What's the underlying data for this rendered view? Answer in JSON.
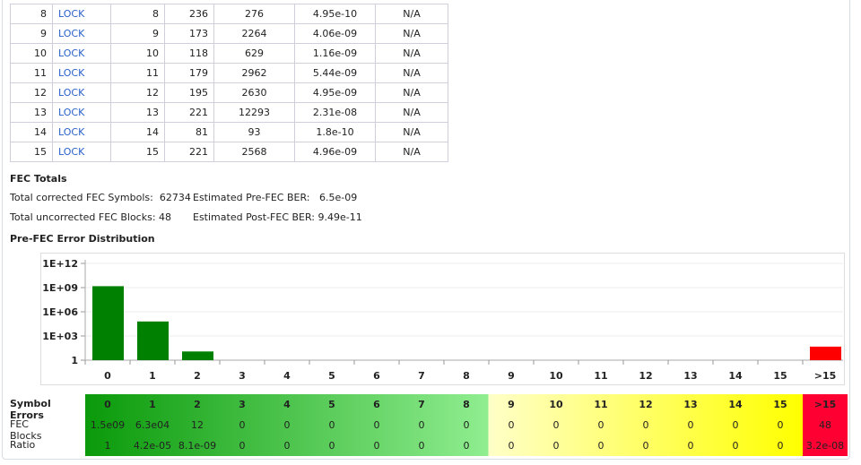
{
  "channels": {
    "rows": [
      [
        "8",
        "LOCK",
        "8",
        "236",
        "276",
        "4.95e-10",
        "N/A"
      ],
      [
        "9",
        "LOCK",
        "9",
        "173",
        "2264",
        "4.06e-09",
        "N/A"
      ],
      [
        "10",
        "LOCK",
        "10",
        "118",
        "629",
        "1.16e-09",
        "N/A"
      ],
      [
        "11",
        "LOCK",
        "11",
        "179",
        "2962",
        "5.44e-09",
        "N/A"
      ],
      [
        "12",
        "LOCK",
        "12",
        "195",
        "2630",
        "4.95e-09",
        "N/A"
      ],
      [
        "13",
        "LOCK",
        "13",
        "221",
        "12293",
        "2.31e-08",
        "N/A"
      ],
      [
        "14",
        "LOCK",
        "14",
        "81",
        "93",
        "1.8e-10",
        "N/A"
      ],
      [
        "15",
        "LOCK",
        "15",
        "221",
        "2568",
        "4.96e-09",
        "N/A"
      ]
    ]
  },
  "fec_totals": {
    "title": "FEC Totals",
    "corrected_label": "Total corrected FEC Symbols:",
    "corrected_value": "62734",
    "uncorrected_label": "Total uncorrected FEC Blocks:",
    "uncorrected_value": "48",
    "pre_ber_label": "Estimated Pre-FEC BER:",
    "pre_ber_value": "6.5e-09",
    "post_ber_label": "Estimated Post-FEC BER:",
    "post_ber_value": "9.49e-11"
  },
  "distribution_title": "Pre-FEC Error Distribution",
  "chart_data": {
    "type": "bar",
    "title": "Pre-FEC Error Distribution",
    "yscale": "log",
    "ylim": [
      1,
      1000000000000.0
    ],
    "yticks": [
      "1",
      "1E+03",
      "1E+06",
      "1E+09",
      "1E+12"
    ],
    "categories": [
      "0",
      "1",
      "2",
      "3",
      "4",
      "5",
      "6",
      "7",
      "8",
      "9",
      "10",
      "11",
      "12",
      "13",
      "14",
      "15",
      ">15"
    ],
    "values": [
      1500000000.0,
      63000.0,
      12,
      0,
      0,
      0,
      0,
      0,
      0,
      0,
      0,
      0,
      0,
      0,
      0,
      0,
      48
    ],
    "colors": {
      "normal": "#008000",
      "uncorrectable": "#ff0000"
    }
  },
  "table": {
    "row_labels": [
      "Symbol Errors",
      "FEC Blocks",
      "Ratio"
    ],
    "fec_blocks": [
      "1.5e09",
      "6.3e04",
      "12",
      "0",
      "0",
      "0",
      "0",
      "0",
      "0",
      "0",
      "0",
      "0",
      "0",
      "0",
      "0",
      "0",
      "48"
    ],
    "ratio": [
      "1",
      "4.2e-05",
      "8.1e-09",
      "0",
      "0",
      "0",
      "0",
      "0",
      "0",
      "0",
      "0",
      "0",
      "0",
      "0",
      "0",
      "0",
      "3.2e-08"
    ]
  }
}
